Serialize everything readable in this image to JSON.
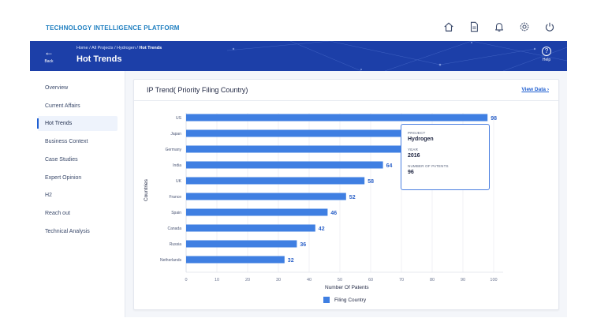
{
  "app": {
    "title": "TECHNOLOGY INTELLIGENCE PLATFORM"
  },
  "top_icons": [
    "home-icon",
    "document-icon",
    "bell-icon",
    "gear-icon",
    "power-icon"
  ],
  "header": {
    "back_label": "Back",
    "breadcrumb": {
      "path": "Home / All Projects / Hydrogen / ",
      "current": "Hot Trends"
    },
    "title": "Hot Trends",
    "help_label": "Help",
    "help_symbol": "?"
  },
  "sidebar": {
    "items": [
      {
        "label": "Overview",
        "active": false
      },
      {
        "label": "Current Affairs",
        "active": false
      },
      {
        "label": "Hot Trends",
        "active": true
      },
      {
        "label": "Business Context",
        "active": false
      },
      {
        "label": "Case Studies",
        "active": false
      },
      {
        "label": "Expert Opinion",
        "active": false
      },
      {
        "label": "H2",
        "active": false
      },
      {
        "label": "Reach out",
        "active": false
      },
      {
        "label": "Technical Analysis",
        "active": false
      }
    ]
  },
  "card": {
    "title": "IP Trend( Priority Filing Country)",
    "view_data_label": "View Data",
    "view_data_chevron": "›"
  },
  "tooltip": {
    "project_label": "PROJECT",
    "project_value": "Hydrogen",
    "year_label": "YEAR",
    "year_value": "2016",
    "patents_label": "NUMBER OF PATENTS",
    "patents_value": "96"
  },
  "colors": {
    "accent": "#1f5fd1",
    "bar": "#3f7fe2",
    "header_bg": "#1c3fa8",
    "brand": "#1f7fc0"
  },
  "chart_data": {
    "type": "bar",
    "orientation": "horizontal",
    "categories": [
      "US",
      "Japan",
      "Germany",
      "India",
      "UK",
      "France",
      "Spain",
      "Canada",
      "Russia",
      "Netherlands"
    ],
    "series": [
      {
        "name": "Filing Country",
        "values": [
          98,
          96,
          96,
          64,
          58,
          52,
          46,
          42,
          36,
          32
        ]
      }
    ],
    "data_labels": [
      "98",
      "",
      "",
      "64",
      "58",
      "52",
      "46",
      "42",
      "36",
      "32"
    ],
    "xlabel": "Number Of Patents",
    "ylabel": "Countries",
    "xlim": [
      0,
      100
    ],
    "x_ticks": [
      "0",
      "10",
      "20",
      "30",
      "40",
      "50",
      "60",
      "70",
      "80",
      "90",
      "100"
    ],
    "grid": true,
    "legend": "bottom"
  }
}
